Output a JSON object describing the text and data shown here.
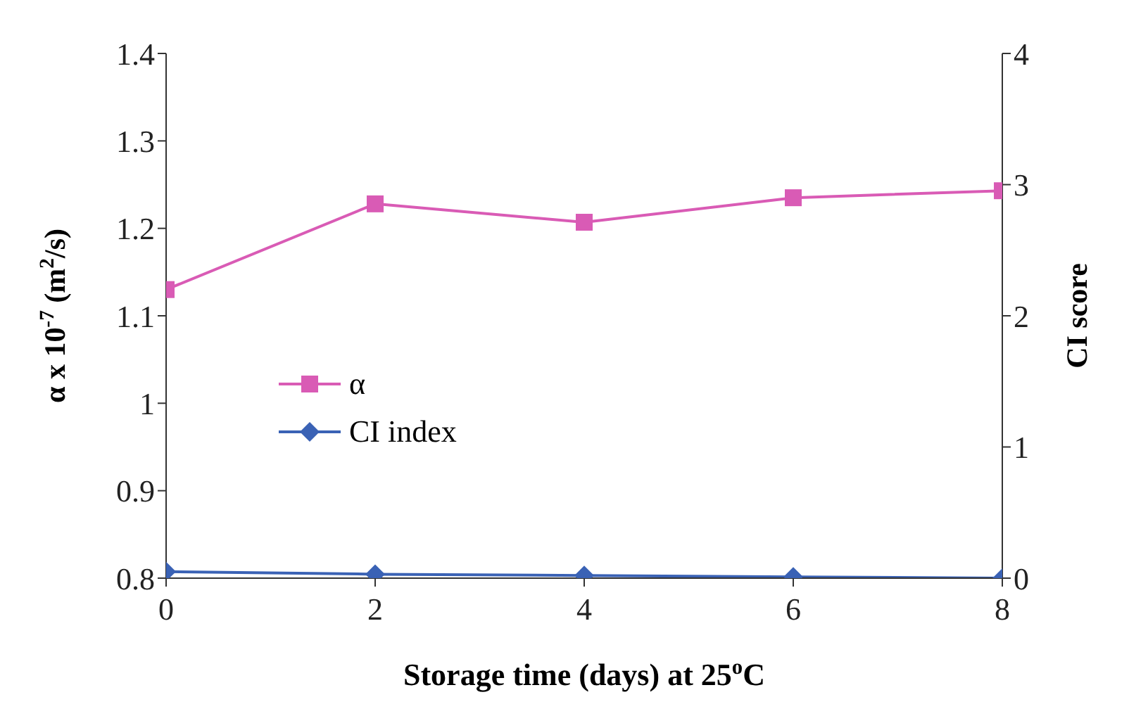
{
  "chart_data": {
    "type": "line",
    "xlabel": "Storage time (days) at 25$^{o}$C",
    "ylabel": "α x 10$^{-7}$ (m$^{2}$/s)",
    "y2label": "CI score",
    "x": [
      0,
      2,
      4,
      6,
      8
    ],
    "xlim": [
      0,
      8
    ],
    "xticks": [
      0,
      2,
      4,
      6,
      8
    ],
    "ylim": [
      0.8,
      1.4
    ],
    "yticks": [
      0.8,
      0.9,
      1,
      1.1,
      1.2,
      1.3,
      1.4
    ],
    "y2lim": [
      0,
      4
    ],
    "y2ticks": [
      0,
      1,
      2,
      3,
      4
    ],
    "legend": "left",
    "grid": false,
    "series": [
      {
        "name": "α",
        "color": "#d95bb5",
        "marker": "square",
        "values": [
          1.13,
          1.228,
          1.207,
          1.235,
          1.243
        ]
      },
      {
        "name": "CI index",
        "color": "#3a62b5",
        "marker": "diamond",
        "axis": "y2",
        "values": [
          0.05,
          0.03,
          0.02,
          0.01,
          0
        ]
      }
    ]
  }
}
